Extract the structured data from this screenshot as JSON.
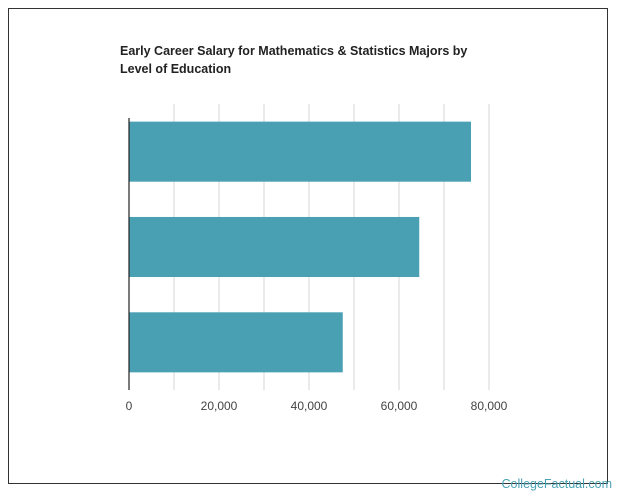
{
  "chart": {
    "title": "Early Career Salary for Mathematics & Statistics Majors by Level of Education"
  },
  "branding": {
    "watermark": "CollegeFactual.com"
  },
  "colors": {
    "bar": "#4aa0b3",
    "grid": "#d6d6d6",
    "axis": "#222222",
    "watermark": "#4aa3b5"
  },
  "chart_data": {
    "type": "bar",
    "orientation": "horizontal",
    "title": "Early Career Salary for Mathematics & Statistics Majors by Level of Education",
    "categories": [
      "",
      "",
      ""
    ],
    "values": [
      76000,
      64500,
      47500
    ],
    "xlabel": "",
    "ylabel": "",
    "xlim": [
      0,
      80000
    ],
    "xticks": [
      0,
      20000,
      40000,
      60000,
      80000
    ],
    "xtick_labels": [
      "0",
      "20,000",
      "40,000",
      "60,000",
      "80,000"
    ],
    "grid": true,
    "legend": "none"
  }
}
